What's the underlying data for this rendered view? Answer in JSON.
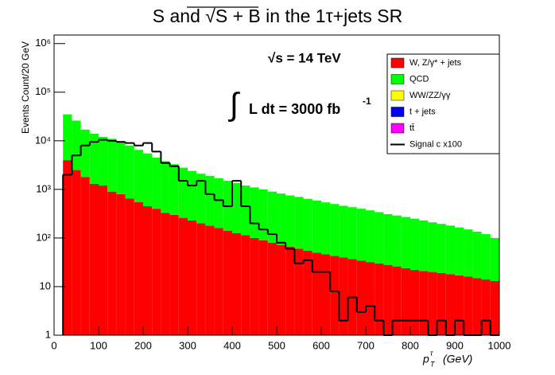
{
  "chart_data": {
    "type": "stacked_histogram",
    "title": "S and √S + B  in the 1τ+jets SR",
    "annotations": {
      "energy": "√s = 14 TeV",
      "integral_sign": "∫",
      "lumi": "L dt = 3000 fb",
      "lumi_exp": "-1"
    },
    "ylabel": "Events Count/20 GeV",
    "xlabel": {
      "base": "p",
      "sub": "T",
      "sup": "τ",
      "unit": "(GeV)"
    },
    "log_y": true,
    "xlim": [
      0,
      1000
    ],
    "ylim": [
      1,
      1500000
    ],
    "xticks": [
      0,
      100,
      200,
      300,
      400,
      500,
      600,
      700,
      800,
      900,
      1000
    ],
    "yticks": [
      1,
      10,
      {
        "value": 100,
        "label": "10²"
      },
      {
        "value": 1000,
        "label": "10³"
      },
      {
        "value": 10000,
        "label": "10⁴"
      },
      {
        "value": 100000,
        "label": "10⁵"
      },
      {
        "value": 1000000,
        "label": "10⁶"
      }
    ],
    "bins": [
      20,
      40,
      60,
      80,
      100,
      120,
      140,
      160,
      180,
      200,
      220,
      240,
      260,
      280,
      300,
      320,
      340,
      360,
      380,
      400,
      420,
      440,
      460,
      480,
      500,
      520,
      540,
      560,
      580,
      600,
      620,
      640,
      660,
      680,
      700,
      720,
      740,
      760,
      780,
      800,
      820,
      840,
      860,
      880,
      900,
      920,
      940,
      960,
      980,
      1000
    ],
    "legend_position": "upper right",
    "series": [
      {
        "name": "W, Z/γ* + jets",
        "color": "#ff0000",
        "style": "fill",
        "values": [
          4000,
          2500,
          1800,
          1300,
          1200,
          900,
          800,
          650,
          550,
          450,
          400,
          330,
          300,
          260,
          230,
          200,
          180,
          160,
          140,
          125,
          115,
          100,
          90,
          80,
          72,
          66,
          60,
          55,
          50,
          46,
          43,
          40,
          37,
          34,
          32,
          30,
          28,
          26,
          24,
          22,
          21,
          20,
          19,
          18,
          17,
          16,
          15,
          14,
          13
        ]
      },
      {
        "name": "QCD",
        "color": "#00ff00",
        "style": "fill",
        "values": [
          31000,
          23500,
          15200,
          12700,
          10800,
          10100,
          8700,
          7350,
          5950,
          5050,
          4100,
          3470,
          3000,
          2540,
          2170,
          1900,
          1720,
          1540,
          1360,
          1225,
          1085,
          1000,
          910,
          820,
          748,
          684,
          640,
          585,
          540,
          494,
          457,
          420,
          393,
          366,
          338,
          310,
          282,
          264,
          246,
          228,
          209,
          190,
          176,
          162,
          148,
          134,
          120,
          106,
          87
        ]
      },
      {
        "name": "WW/ZZ/γγ",
        "color": "#ffff00",
        "style": "fill"
      },
      {
        "name": "t + jets",
        "color": "#0000ff",
        "style": "fill"
      },
      {
        "name": "tt̄",
        "color": "#ff00ff",
        "style": "fill"
      },
      {
        "name": "Signal c x100",
        "color": "#000000",
        "style": "line",
        "values": [
          2000,
          5000,
          8000,
          9500,
          10500,
          10000,
          9500,
          9000,
          8000,
          9000,
          6000,
          3500,
          3000,
          1500,
          1200,
          1500,
          800,
          600,
          450,
          1500,
          450,
          200,
          150,
          120,
          80,
          60,
          30,
          35,
          20,
          20,
          8,
          2,
          6,
          3,
          4,
          2,
          1,
          2,
          2,
          2,
          2,
          1,
          2,
          1,
          2,
          1,
          1,
          2,
          1
        ]
      }
    ]
  }
}
